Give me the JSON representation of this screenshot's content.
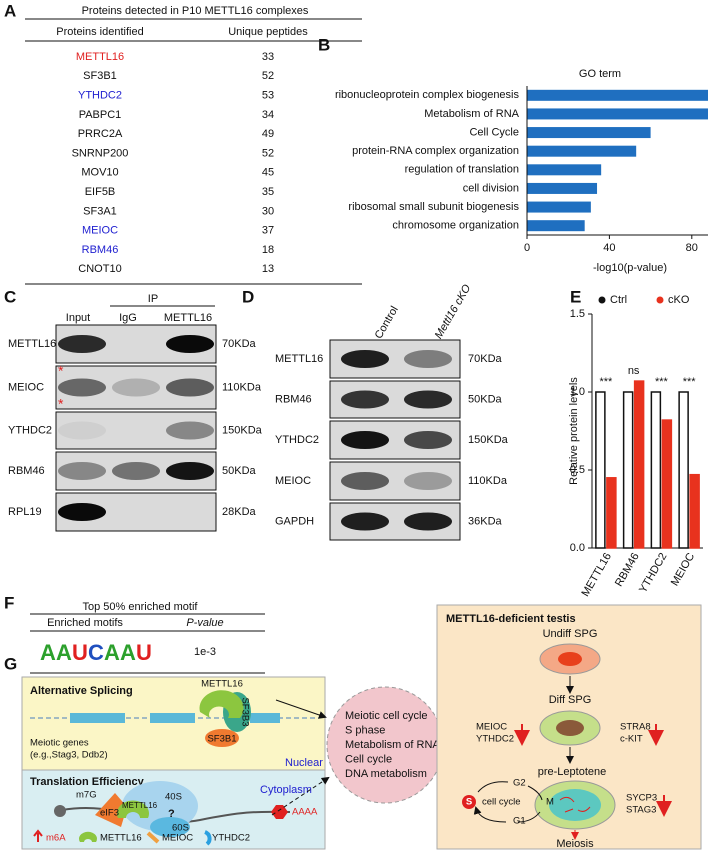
{
  "panel_labels": [
    "A",
    "B",
    "C",
    "D",
    "E",
    "F",
    "G"
  ],
  "table_a": {
    "title": "Proteins detected in P10 METTL16 complexes",
    "columns": [
      "Proteins identified",
      "Unique peptides"
    ],
    "rows": [
      {
        "protein": "METTL16",
        "peptides": 33,
        "color": "#e02020"
      },
      {
        "protein": "SF3B1",
        "peptides": 52,
        "color": "#111111"
      },
      {
        "protein": "YTHDC2",
        "peptides": 53,
        "color": "#2020d0"
      },
      {
        "protein": "PABPC1",
        "peptides": 34,
        "color": "#111111"
      },
      {
        "protein": "PRRC2A",
        "peptides": 49,
        "color": "#111111"
      },
      {
        "protein": "SNRNP200",
        "peptides": 52,
        "color": "#111111"
      },
      {
        "protein": "MOV10",
        "peptides": 45,
        "color": "#111111"
      },
      {
        "protein": "EIF5B",
        "peptides": 35,
        "color": "#111111"
      },
      {
        "protein": "SF3A1",
        "peptides": 30,
        "color": "#111111"
      },
      {
        "protein": "MEIOC",
        "peptides": 37,
        "color": "#2020d0"
      },
      {
        "protein": "RBM46",
        "peptides": 18,
        "color": "#2020d0"
      },
      {
        "protein": "CNOT10",
        "peptides": 13,
        "color": "#111111"
      }
    ]
  },
  "chart_data": [
    {
      "type": "barh",
      "title": "GO term",
      "categories": [
        "ribonucleoprotein complex biogenesis",
        "Metabolism of RNA",
        "Cell Cycle",
        "protein-RNA complex organization",
        "regulation of translation",
        "cell division",
        "ribosomal small subunit biogenesis",
        "chromosome organization"
      ],
      "values": [
        97,
        97,
        60,
        53,
        36,
        34,
        31,
        28
      ],
      "color": "#1f6fc0",
      "xlim": [
        0,
        100
      ],
      "xticks": [
        0,
        40,
        80
      ],
      "xlabel": "-log10(p-value)"
    },
    {
      "type": "bar",
      "categories": [
        "METTL16",
        "RBM46",
        "YTHDC2",
        "MEIOC"
      ],
      "series": [
        {
          "name": "Ctrl",
          "color": "#111111",
          "values": [
            1,
            1,
            1,
            1
          ]
        },
        {
          "name": "cKO",
          "color": "#e8321e",
          "values": [
            0.45,
            1.07,
            0.82,
            0.47
          ]
        }
      ],
      "ylim": [
        0,
        1.5
      ],
      "yticks": [
        {
          "value": 0,
          "label": "0.0"
        },
        0.5,
        {
          "value": 1,
          "label": "1.0"
        },
        1.5
      ],
      "ylabel": "Relative protein levels",
      "annotations": [
        "***",
        "ns",
        "***",
        "***"
      ],
      "legend": "top"
    }
  ],
  "blot_c": {
    "ip": "IP",
    "lanes": [
      "Input",
      "IgG",
      "METTL16"
    ],
    "asterisk": "*",
    "rows": [
      {
        "protein": "METTL16",
        "size": "70KDa"
      },
      {
        "protein": "MEIOC",
        "size": "110KDa"
      },
      {
        "protein": "YTHDC2",
        "size": "150KDa"
      },
      {
        "protein": "RBM46",
        "size": "50KDa"
      },
      {
        "protein": "RPL19",
        "size": "28KDa"
      }
    ]
  },
  "blot_d": {
    "lanes": [
      "Control",
      "Mettl16 cKO"
    ],
    "rows": [
      {
        "protein": "METTL16",
        "size": "70KDa"
      },
      {
        "protein": "RBM46",
        "size": "50KDa"
      },
      {
        "protein": "YTHDC2",
        "size": "150KDa"
      },
      {
        "protein": "MEIOC",
        "size": "110KDa"
      },
      {
        "protein": "GAPDH",
        "size": "36KDa"
      }
    ]
  },
  "motif": {
    "title": "Top 50% enriched motif",
    "columns": [
      "Enriched motifs",
      "P-value"
    ],
    "logo": [
      "A",
      "A",
      "U",
      "C",
      "A",
      "A",
      "U"
    ],
    "letter_colors": {
      "A": "#2ca02c",
      "U": "#e02020",
      "C": "#1f4fbf",
      "G": "#f0a020"
    },
    "p_value": "1e-3"
  },
  "diagram": {
    "splicing": {
      "title": "Alternative Splicing",
      "mettl16": "METTL16",
      "sf3b3": "SF3B3",
      "sf3b1": "SF3B1",
      "genes": "Meiotic genes",
      "genes_eg": "(e.g.,Stag3, Ddb2)",
      "compartment": "Nuclear"
    },
    "translation": {
      "title": "Translation Efficiency",
      "compartment": "Cytoplasm",
      "cap": "m7G",
      "small_subunit": "40S",
      "large_subunit": "60S",
      "eif3": "eIF3",
      "mettl16": "METTL16",
      "unknown": "?",
      "polya": "AAAA"
    },
    "legend": [
      "m6A",
      "METTL16",
      "MEIOC",
      "YTHDC2"
    ],
    "processes": [
      "Meiotic cell cycle",
      "S phase",
      "Metabolism of RNA",
      "Cell cycle",
      "DNA metabolism"
    ],
    "testis": {
      "title": "METTL16-deficient testis",
      "stages": [
        "Undiff SPG",
        "Diff SPG",
        "pre-Leptotene",
        "Meiosis"
      ],
      "diff_down_left": [
        "MEIOC",
        "YTHDC2"
      ],
      "diff_down_right": [
        "STRA8",
        "c-KIT"
      ],
      "prelep_down": [
        "SYCP3",
        "STAG3"
      ],
      "cell_cycle": {
        "label": "cell cycle",
        "phases": [
          "S",
          "G2",
          "M",
          "G1"
        ]
      }
    }
  }
}
